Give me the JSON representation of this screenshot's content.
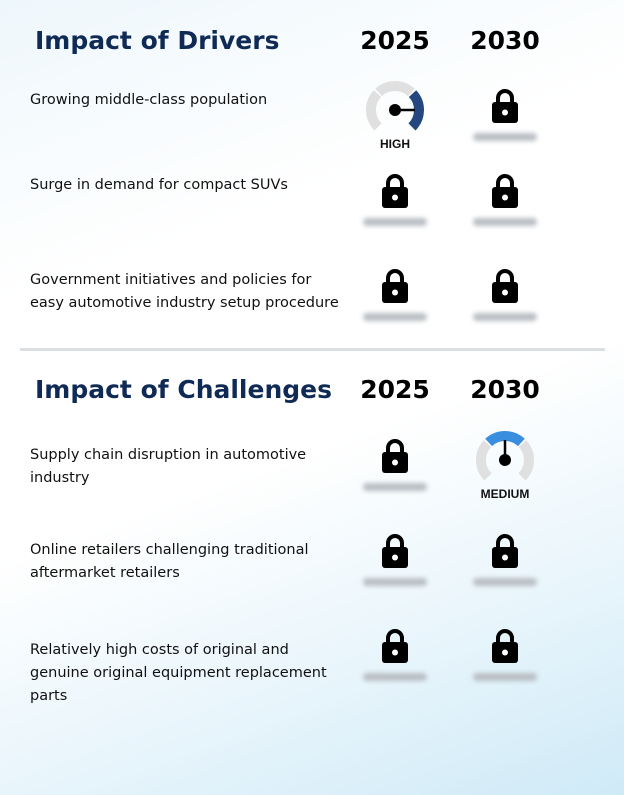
{
  "sections": [
    {
      "title": "Impact of Drivers",
      "years": [
        "2025",
        "2030"
      ],
      "rows": [
        {
          "label": "Growing middle-class population",
          "cells": [
            {
              "type": "gauge",
              "level": "HIGH",
              "color": "#24477f",
              "segment": 2
            },
            {
              "type": "locked"
            }
          ]
        },
        {
          "label": "Surge in demand for compact SUVs",
          "cells": [
            {
              "type": "locked"
            },
            {
              "type": "locked"
            }
          ]
        },
        {
          "label": "Government initiatives and policies for easy automotive industry setup procedure",
          "cells": [
            {
              "type": "locked"
            },
            {
              "type": "locked"
            }
          ]
        }
      ]
    },
    {
      "title": "Impact of Challenges",
      "years": [
        "2025",
        "2030"
      ],
      "rows": [
        {
          "label": "Supply chain disruption in automotive industry",
          "cells": [
            {
              "type": "locked"
            },
            {
              "type": "gauge",
              "level": "MEDIUM",
              "color": "#3a8ee0",
              "segment": 1
            }
          ]
        },
        {
          "label": "Online retailers challenging traditional aftermarket retailers",
          "cells": [
            {
              "type": "locked"
            },
            {
              "type": "locked"
            }
          ]
        },
        {
          "label": "Relatively high costs of original and genuine original equipment replacement parts",
          "cells": [
            {
              "type": "locked"
            },
            {
              "type": "locked"
            }
          ]
        }
      ]
    }
  ],
  "icons": {
    "locked": "lock-icon",
    "gauge": "gauge-icon"
  },
  "colors": {
    "title": "#0f2a55",
    "gauge_inactive": "#e0e0e0"
  }
}
